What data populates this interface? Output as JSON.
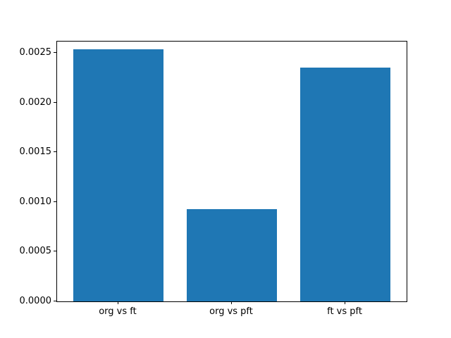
{
  "chart_data": {
    "type": "bar",
    "categories": [
      "org vs ft",
      "org vs pft",
      "ft vs pft"
    ],
    "values": [
      0.00254,
      0.00093,
      0.00236
    ],
    "title": "",
    "xlabel": "",
    "ylabel": "",
    "ylim": [
      0,
      0.00262
    ],
    "yticks": [
      0.0,
      0.0005,
      0.001,
      0.0015,
      0.002,
      0.0025
    ],
    "ytick_labels": [
      "0.0000",
      "0.0005",
      "0.0010",
      "0.0015",
      "0.0020",
      "0.0025"
    ],
    "bar_color": "#1f77b4",
    "bar_width_fraction": 0.8,
    "grid": false,
    "legend": false,
    "background_color": "#ffffff",
    "spine_color": "#000000"
  }
}
